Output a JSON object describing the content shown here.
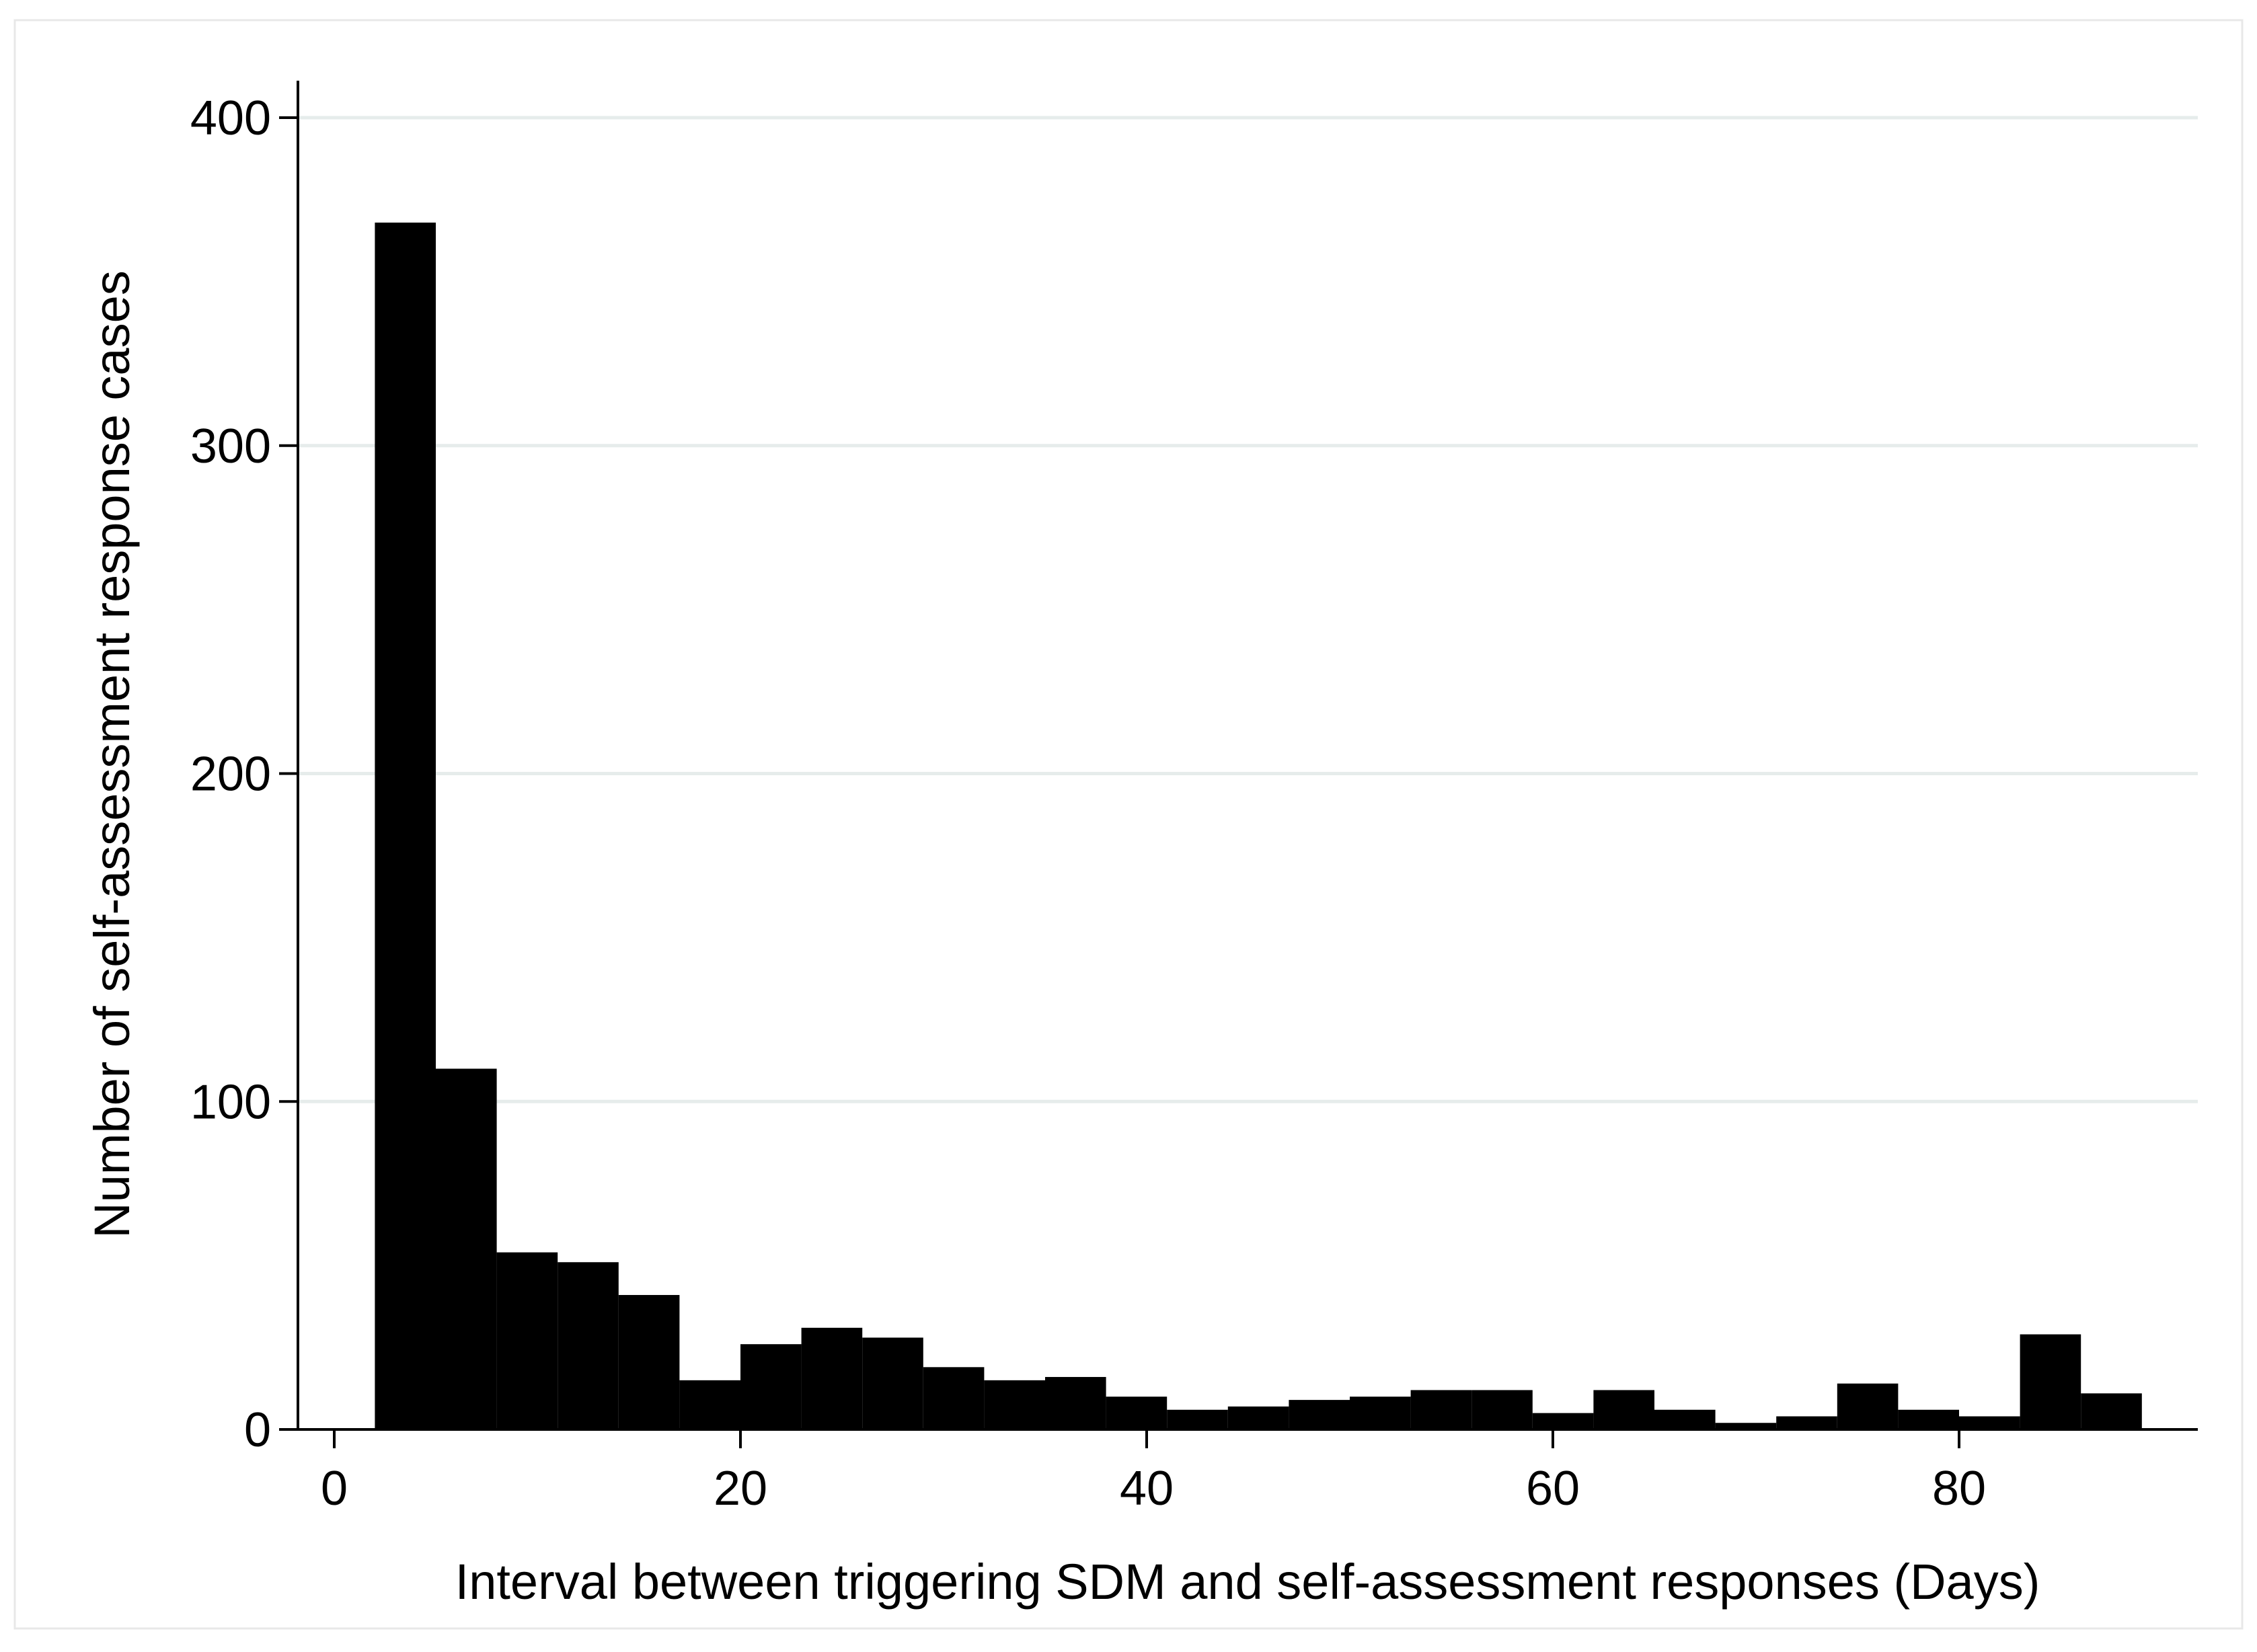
{
  "chart_data": {
    "type": "bar",
    "subtype": "histogram",
    "title": "",
    "xlabel": "Interval between triggering SDM and self-assessment responses (Days)",
    "ylabel": "Number of self-assessment response cases",
    "xlim": [
      -2.5,
      91
    ],
    "ylim": [
      0,
      400
    ],
    "xticks": [
      0,
      20,
      40,
      60,
      80
    ],
    "xtick_labels": [
      "0",
      "20",
      "40",
      "60",
      "80"
    ],
    "yticks": [
      0,
      100,
      200,
      300,
      400
    ],
    "ytick_labels": [
      "0",
      "100",
      "200",
      "300",
      "400"
    ],
    "grid": "horizontal",
    "legend": "none",
    "bar_color": "#000000",
    "grid_color": "#e6eceb",
    "bins": [
      {
        "x0": 2.0,
        "x1": 5.0,
        "value": 368
      },
      {
        "x0": 5.0,
        "x1": 8.0,
        "value": 110
      },
      {
        "x0": 8.0,
        "x1": 11.0,
        "value": 54
      },
      {
        "x0": 11.0,
        "x1": 14.0,
        "value": 51
      },
      {
        "x0": 14.0,
        "x1": 17.0,
        "value": 41
      },
      {
        "x0": 17.0,
        "x1": 20.0,
        "value": 15
      },
      {
        "x0": 20.0,
        "x1": 23.0,
        "value": 26
      },
      {
        "x0": 23.0,
        "x1": 26.0,
        "value": 31
      },
      {
        "x0": 26.0,
        "x1": 29.0,
        "value": 28
      },
      {
        "x0": 29.0,
        "x1": 32.0,
        "value": 19
      },
      {
        "x0": 32.0,
        "x1": 35.0,
        "value": 15
      },
      {
        "x0": 35.0,
        "x1": 38.0,
        "value": 16
      },
      {
        "x0": 38.0,
        "x1": 41.0,
        "value": 10
      },
      {
        "x0": 41.0,
        "x1": 44.0,
        "value": 6
      },
      {
        "x0": 44.0,
        "x1": 47.0,
        "value": 7
      },
      {
        "x0": 47.0,
        "x1": 50.0,
        "value": 9
      },
      {
        "x0": 50.0,
        "x1": 53.0,
        "value": 10
      },
      {
        "x0": 53.0,
        "x1": 56.0,
        "value": 12
      },
      {
        "x0": 56.0,
        "x1": 59.0,
        "value": 12
      },
      {
        "x0": 59.0,
        "x1": 62.0,
        "value": 5
      },
      {
        "x0": 62.0,
        "x1": 65.0,
        "value": 12
      },
      {
        "x0": 65.0,
        "x1": 68.0,
        "value": 6
      },
      {
        "x0": 68.0,
        "x1": 71.0,
        "value": 2
      },
      {
        "x0": 71.0,
        "x1": 74.0,
        "value": 4
      },
      {
        "x0": 74.0,
        "x1": 77.0,
        "value": 14
      },
      {
        "x0": 77.0,
        "x1": 80.0,
        "value": 6
      },
      {
        "x0": 80.0,
        "x1": 83.0,
        "value": 4
      },
      {
        "x0": 83.0,
        "x1": 86.0,
        "value": 29
      },
      {
        "x0": 86.0,
        "x1": 89.0,
        "value": 11
      }
    ]
  }
}
